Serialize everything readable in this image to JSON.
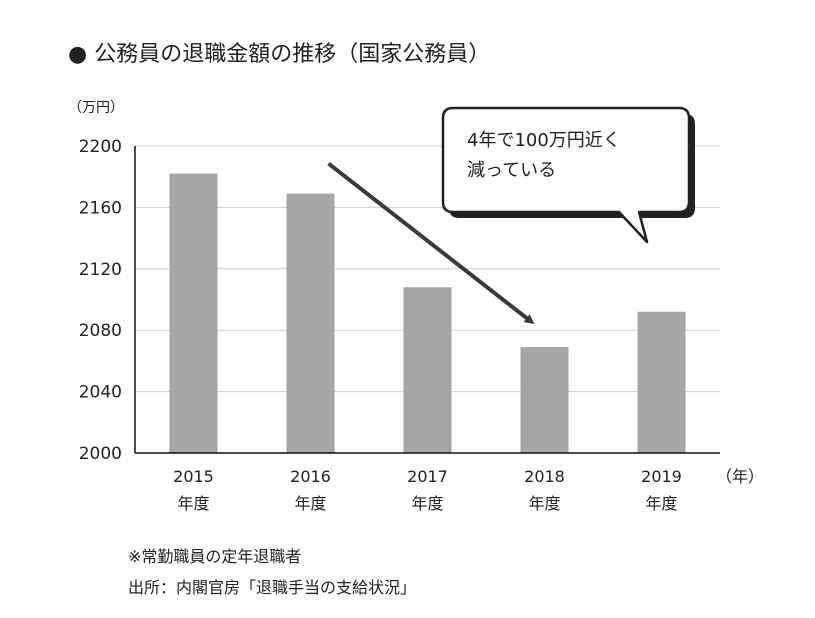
{
  "title": "● 公務員の退職金額の推移（国家公務員）",
  "chart_data": {
    "type": "bar",
    "categories": [
      {
        "year": "2015",
        "suffix": "年度"
      },
      {
        "year": "2016",
        "suffix": "年度"
      },
      {
        "year": "2017",
        "suffix": "年度"
      },
      {
        "year": "2018",
        "suffix": "年度"
      },
      {
        "year": "2019",
        "suffix": "年度"
      }
    ],
    "values": [
      2182,
      2169,
      2108,
      2069,
      2092
    ],
    "y_unit_label": "（万円）",
    "x_unit_label": "（年）",
    "ylim": [
      2000,
      2200
    ],
    "yticks": [
      2000,
      2040,
      2080,
      2120,
      2160,
      2200
    ],
    "grid": true,
    "bar_color": "#a6a6a6",
    "callout_lines": [
      "4年で100万円近く",
      "減っている"
    ],
    "trend_arrow": {
      "from_category": "2016",
      "to_category": "2018"
    }
  },
  "notes": {
    "note1": "※常勤職員の定年退職者",
    "note2": "出所：内閣官房「退職手当の支給状況」"
  }
}
